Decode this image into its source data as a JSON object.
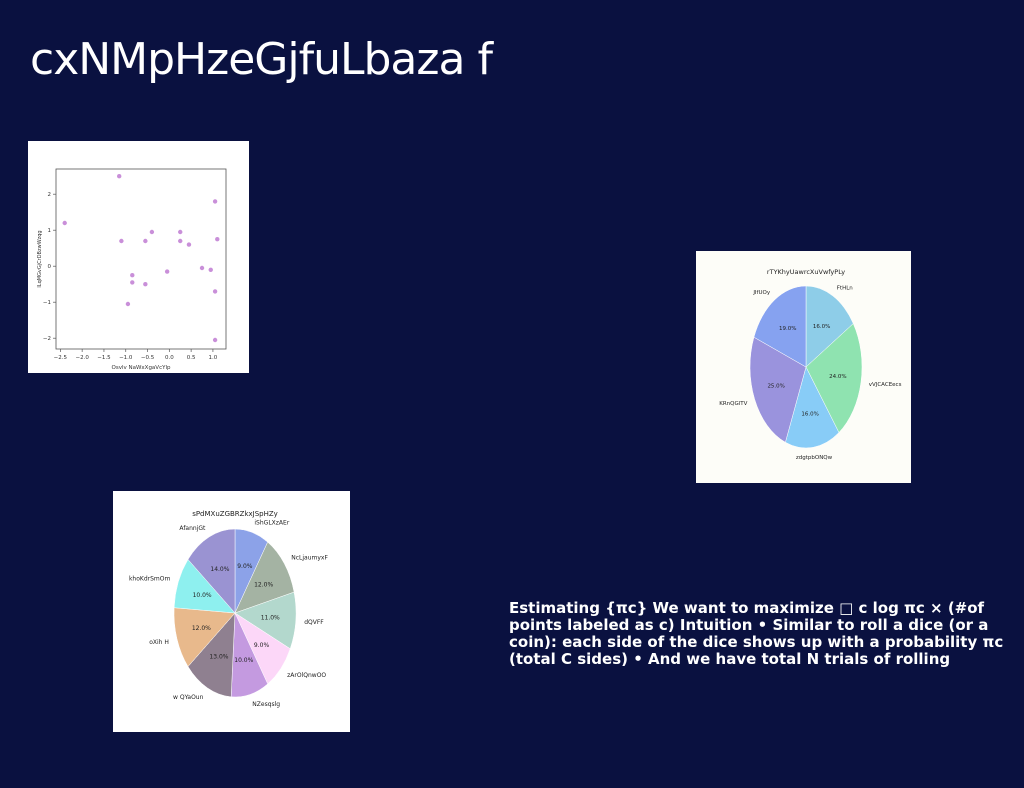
{
  "slide": {
    "title": "cxNMpHzeGjfuLbaza f",
    "body": "Estimating {πc} We want to maximize □ c log πc × (#of points labeled as c) Intuition • Similar to roll a dice (or a coin): each side of the dice shows up with a probability πc (total C sides) • And we have total N trials of rolling"
  },
  "chart_data": [
    {
      "type": "scatter",
      "title": "",
      "xlabel": "Osvlv NaWxXgaVcYlp",
      "ylabel": "lLqMGvGjCrDBzwWzqg",
      "xlim": [
        -2.6,
        1.3
      ],
      "ylim": [
        -2.3,
        2.7
      ],
      "xticks": [
        "−2.5",
        "−2.0",
        "−1.5",
        "−1.0",
        "−0.5",
        "0.0",
        "0.5",
        "1.0"
      ],
      "xtick_values": [
        -2.5,
        -2.0,
        -1.5,
        -1.0,
        -0.5,
        0.0,
        0.5,
        1.0
      ],
      "yticks": [
        "2",
        "1",
        "0",
        "−1",
        "−2"
      ],
      "ytick_values": [
        2,
        1,
        0,
        -1,
        -2
      ],
      "color": "#c98fd9",
      "points": [
        {
          "x": -2.4,
          "y": 1.2
        },
        {
          "x": -1.15,
          "y": 2.5
        },
        {
          "x": -1.1,
          "y": 0.7
        },
        {
          "x": -0.95,
          "y": -1.05
        },
        {
          "x": -0.85,
          "y": -0.25
        },
        {
          "x": -0.85,
          "y": -0.45
        },
        {
          "x": -0.55,
          "y": 0.7
        },
        {
          "x": -0.55,
          "y": -0.5
        },
        {
          "x": -0.4,
          "y": 0.95
        },
        {
          "x": -0.05,
          "y": -0.15
        },
        {
          "x": 0.25,
          "y": 0.95
        },
        {
          "x": 0.25,
          "y": 0.7
        },
        {
          "x": 0.45,
          "y": 0.6
        },
        {
          "x": 0.75,
          "y": -0.05
        },
        {
          "x": 0.95,
          "y": -0.1
        },
        {
          "x": 1.05,
          "y": 1.8
        },
        {
          "x": 1.1,
          "y": 0.75
        },
        {
          "x": 1.05,
          "y": -0.7
        },
        {
          "x": 1.05,
          "y": -2.05
        }
      ]
    },
    {
      "type": "pie",
      "title": "rTYKhyUawrcXuVwfyPLy",
      "slices": [
        {
          "label": "FtHLn",
          "value": 16.0,
          "pct": "16.0%",
          "color": "#8ecde8"
        },
        {
          "label": "vVJCACEecs",
          "value": 24.0,
          "pct": "24.0%",
          "color": "#8fe3b0"
        },
        {
          "label": "zdgtpbONQw",
          "value": 16.0,
          "pct": "16.0%",
          "color": "#88ccf7"
        },
        {
          "label": "KRnQGlTV",
          "value": 25.0,
          "pct": "25.0%",
          "color": "#9a93dd"
        },
        {
          "label": "JIfUOy",
          "value": 19.0,
          "pct": "19.0%",
          "color": "#86a2f0"
        }
      ]
    },
    {
      "type": "pie",
      "title": "sPdMXuZGBRZkxJSpHZy",
      "slices": [
        {
          "label": "iShGLXzAEr",
          "value": 9.0,
          "pct": "9.0%",
          "color": "#8ca2e8"
        },
        {
          "label": "NcLjaumyxF",
          "value": 12.0,
          "pct": "12.0%",
          "color": "#a4b3a3"
        },
        {
          "label": "dQVFF",
          "value": 11.0,
          "pct": "11.0%",
          "color": "#b3d8cd"
        },
        {
          "label": "zArOlQnwOO",
          "value": 9.0,
          "pct": "9.0%",
          "color": "#fcd7f8"
        },
        {
          "label": "NZesqslg",
          "value": 10.0,
          "pct": "10.0%",
          "color": "#c49ae0"
        },
        {
          "label": "w QYaOun",
          "value": 13.0,
          "pct": "13.0%",
          "color": "#8f8090"
        },
        {
          "label": "oXih H",
          "value": 12.0,
          "pct": "12.0%",
          "color": "#e8b98c"
        },
        {
          "label": "khoKdrSmOm",
          "value": 10.0,
          "pct": "10.0%",
          "color": "#8ef0ef"
        },
        {
          "label": "AfannjGt",
          "value": 14.0,
          "pct": "14.0%",
          "color": "#9a93d2"
        }
      ]
    }
  ]
}
